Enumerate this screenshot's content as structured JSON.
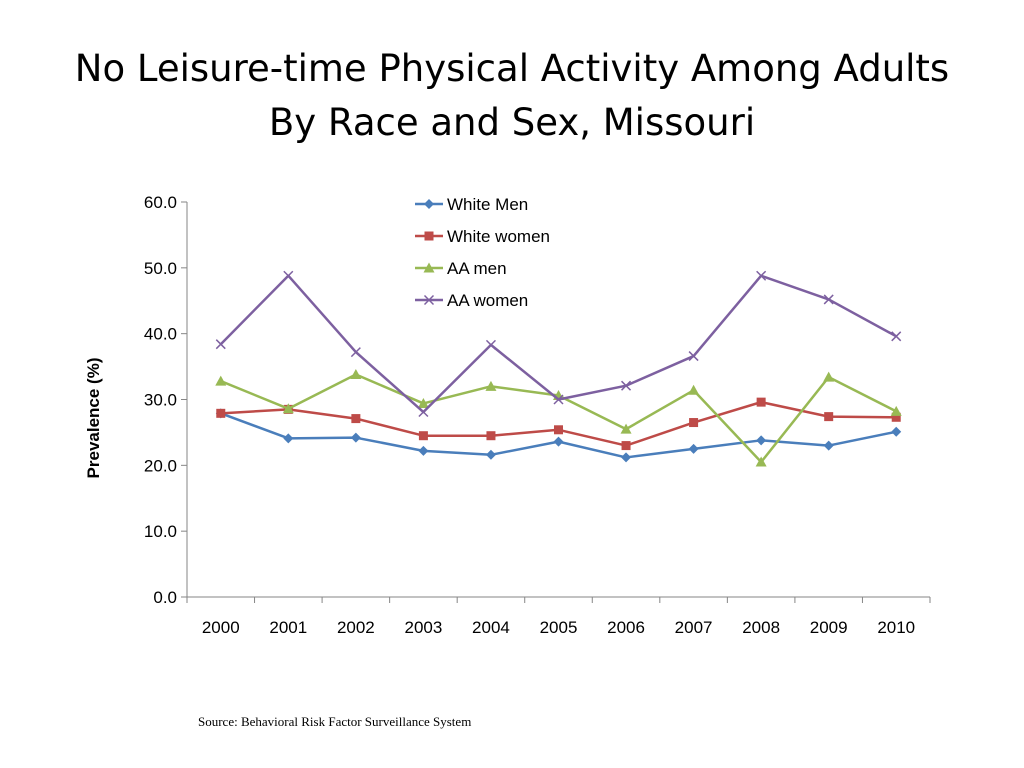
{
  "title": {
    "line1": "No Leisure-time Physical Activity Among Adults",
    "line2": "By Race and Sex, Missouri"
  },
  "source": "Source: Behavioral Risk Factor Surveillance System",
  "chart_data": {
    "type": "line",
    "title": "No Leisure-time Physical Activity Among Adults By Race and Sex, Missouri",
    "xlabel": "",
    "ylabel": "Prevalence (%)",
    "ylim": [
      0,
      60
    ],
    "yticks": [
      "0.0",
      "10.0",
      "20.0",
      "30.0",
      "40.0",
      "50.0",
      "60.0"
    ],
    "categories": [
      "2000",
      "2001",
      "2002",
      "2003",
      "2004",
      "2005",
      "2006",
      "2007",
      "2008",
      "2009",
      "2010"
    ],
    "grid": false,
    "legend_position": "top",
    "series": [
      {
        "name": "White Men",
        "color": "#4a7ebb",
        "marker": "diamond",
        "values": [
          27.9,
          24.1,
          24.2,
          22.2,
          21.6,
          23.6,
          21.2,
          22.5,
          23.8,
          23.0,
          25.1
        ]
      },
      {
        "name": "White women",
        "color": "#be4b48",
        "marker": "square",
        "values": [
          27.9,
          28.5,
          27.1,
          24.5,
          24.5,
          25.4,
          23.0,
          26.5,
          29.6,
          27.4,
          27.3
        ]
      },
      {
        "name": "AA men",
        "color": "#98b954",
        "marker": "triangle",
        "values": [
          32.8,
          28.6,
          33.8,
          29.4,
          32.0,
          30.6,
          25.5,
          31.4,
          20.5,
          33.4,
          28.2
        ]
      },
      {
        "name": "AA women",
        "color": "#7d60a0",
        "marker": "x",
        "values": [
          38.4,
          48.8,
          37.2,
          28.1,
          38.3,
          30.0,
          32.1,
          36.6,
          48.8,
          45.2,
          39.6
        ]
      }
    ]
  }
}
